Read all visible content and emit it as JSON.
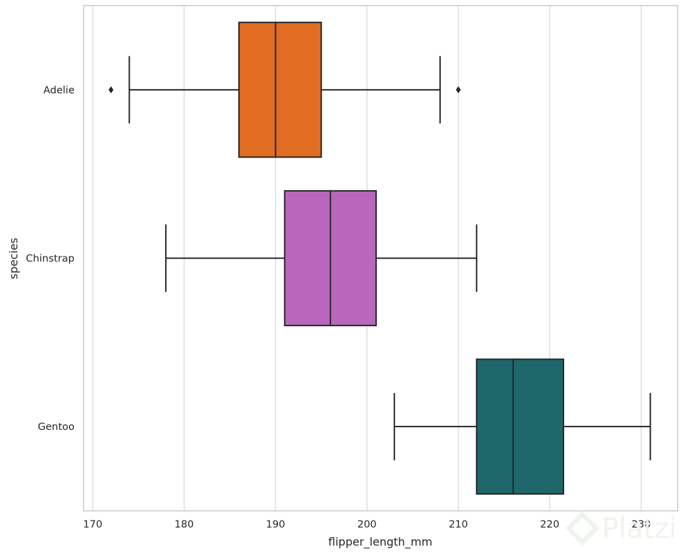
{
  "chart_data": {
    "type": "boxplot",
    "orientation": "horizontal",
    "xlabel": "flipper_length_mm",
    "ylabel": "species",
    "xlim": [
      169,
      234
    ],
    "xticks": [
      170,
      180,
      190,
      200,
      210,
      220,
      230
    ],
    "grid": "vertical",
    "series": [
      {
        "name": "Adelie",
        "color": "#e06d22",
        "whisker_low": 174,
        "q1": 186,
        "median": 190,
        "q3": 195,
        "whisker_high": 208,
        "outliers": [
          172,
          210
        ]
      },
      {
        "name": "Chinstrap",
        "color": "#b967bd",
        "whisker_low": 178,
        "q1": 191,
        "median": 196,
        "q3": 201,
        "whisker_high": 212,
        "outliers": []
      },
      {
        "name": "Gentoo",
        "color": "#1e676b",
        "whisker_low": 203,
        "q1": 212,
        "median": 216,
        "q3": 221.5,
        "whisker_high": 231,
        "outliers": []
      }
    ]
  },
  "watermark": {
    "text": "Platzi",
    "icon": "platzi-logo-icon"
  }
}
